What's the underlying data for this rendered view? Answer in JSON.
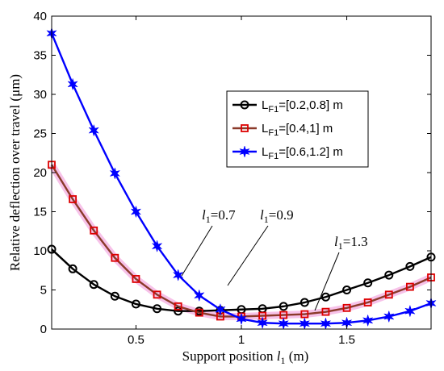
{
  "chart_data": {
    "type": "line",
    "xlabel": "Support position l1 (m)",
    "xlabel_parts": {
      "pre": "Support position ",
      "italic": "l",
      "sub": "1",
      "post": " (m)"
    },
    "ylabel": "Relative deflection over  travel   (μm)",
    "xlim": [
      0.1,
      1.9
    ],
    "ylim": [
      0,
      40
    ],
    "xticks": [
      0.5,
      1,
      1.5
    ],
    "xtick_labels": [
      "0.5",
      "1",
      "1.5"
    ],
    "yticks": [
      0,
      5,
      10,
      15,
      20,
      25,
      30,
      35,
      40
    ],
    "ytick_labels": [
      "0",
      "5",
      "10",
      "15",
      "20",
      "25",
      "30",
      "35",
      "40"
    ],
    "grid": false,
    "legend_position": "upper-right",
    "x": [
      0.1,
      0.2,
      0.3,
      0.4,
      0.5,
      0.6,
      0.7,
      0.8,
      0.9,
      1.0,
      1.1,
      1.2,
      1.3,
      1.4,
      1.5,
      1.6,
      1.7,
      1.8,
      1.9
    ],
    "series": [
      {
        "name": "LF1=[0.2,0.8] m",
        "legend": {
          "pre": "L",
          "sub": "F1",
          "post": "=[0.2,0.8] m"
        },
        "color": "#000000",
        "marker": "circle",
        "values": [
          10.2,
          7.7,
          5.7,
          4.2,
          3.2,
          2.6,
          2.3,
          2.3,
          2.4,
          2.5,
          2.6,
          2.9,
          3.4,
          4.1,
          5.0,
          5.9,
          6.9,
          8.0,
          9.2
        ]
      },
      {
        "name": "LF1=[0.4,1] m",
        "legend": {
          "pre": "L",
          "sub": "F1",
          "post": "=[0.4,1] m"
        },
        "color": "#dd0000",
        "line_color": "#8b3a2a",
        "halo_color": "#f5b3e3",
        "marker": "square",
        "values": [
          21.0,
          16.6,
          12.6,
          9.1,
          6.4,
          4.4,
          2.9,
          2.1,
          1.6,
          1.6,
          1.7,
          1.8,
          1.9,
          2.2,
          2.7,
          3.4,
          4.4,
          5.4,
          6.6
        ]
      },
      {
        "name": "LF1=[0.6,1.2] m",
        "legend": {
          "pre": "L",
          "sub": "F1",
          "post": "=[0.6,1.2] m"
        },
        "color": "#0000ff",
        "marker": "star",
        "values": [
          37.8,
          31.3,
          25.4,
          19.9,
          15.0,
          10.6,
          6.9,
          4.3,
          2.5,
          1.3,
          0.8,
          0.7,
          0.7,
          0.7,
          0.8,
          1.1,
          1.6,
          2.3,
          3.3
        ]
      }
    ],
    "annotations": [
      {
        "id": "l1-07",
        "var": "l",
        "sub": "1",
        "text": "=0.7",
        "x": 0.73,
        "y": 2.3
      },
      {
        "id": "l1-09",
        "var": "l",
        "sub": "1",
        "text": "=0.9",
        "x": 0.9,
        "y": 1.6
      },
      {
        "id": "l1-13",
        "var": "l",
        "sub": "1",
        "text": "=1.3",
        "x": 1.3,
        "y": 0.7
      }
    ]
  }
}
